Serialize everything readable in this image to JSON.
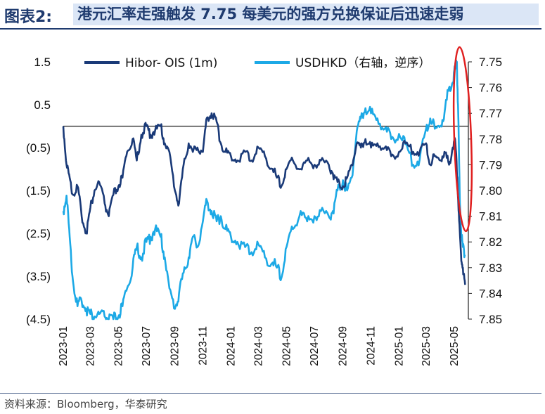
{
  "header": {
    "label": "图表2:",
    "title": "港元汇率走强触发 7.75 每美元的强方兑换保证后迅速走弱"
  },
  "footer": {
    "source": "资料来源：Bloomberg，华泰研究"
  },
  "colors": {
    "hibor": "#1a3a78",
    "usdhkd": "#1ca9e6",
    "highlight": "#e02020",
    "title_bg": "#dbe6f6"
  },
  "chart_data": {
    "type": "line",
    "x_range": [
      "2023-01-01",
      "2025-06-01"
    ],
    "x_ticks": [
      "2023-01",
      "2023-03",
      "2023-05",
      "2023-07",
      "2023-09",
      "2023-11",
      "2024-01",
      "2024-03",
      "2024-05",
      "2024-07",
      "2024-09",
      "2024-11",
      "2025-01",
      "2025-03",
      "2025-05"
    ],
    "left_axis": {
      "min": -4.5,
      "max": 1.5,
      "ticks": [
        "1.5",
        "0.5",
        "(0.5)",
        "(1.5)",
        "(2.5)",
        "(3.5)",
        "(4.5)"
      ],
      "tick_values": [
        1.5,
        0.5,
        -0.5,
        -1.5,
        -2.5,
        -3.5,
        -4.5
      ]
    },
    "right_axis": {
      "min": 7.75,
      "max": 7.85,
      "inverted": true,
      "ticks": [
        "7.75",
        "7.76",
        "7.77",
        "7.78",
        "7.79",
        "7.80",
        "7.81",
        "7.82",
        "7.83",
        "7.84",
        "7.85"
      ],
      "tick_values": [
        7.75,
        7.76,
        7.77,
        7.78,
        7.79,
        7.8,
        7.81,
        7.82,
        7.83,
        7.84,
        7.85
      ]
    },
    "reference_line": 0,
    "annotation": "red ellipse highlighting May 2025",
    "series": [
      {
        "name": "Hibor- OIS (1m)",
        "axis": "left",
        "points": [
          [
            "2023-01-01",
            0.0
          ],
          [
            "2023-01-08",
            -0.9
          ],
          [
            "2023-01-15",
            -1.2
          ],
          [
            "2023-01-22",
            -1.6
          ],
          [
            "2023-02-01",
            -1.4
          ],
          [
            "2023-02-10",
            -2.1
          ],
          [
            "2023-02-20",
            -2.5
          ],
          [
            "2023-03-01",
            -1.9
          ],
          [
            "2023-03-10",
            -1.5
          ],
          [
            "2023-03-20",
            -1.3
          ],
          [
            "2023-04-01",
            -1.8
          ],
          [
            "2023-04-10",
            -2.1
          ],
          [
            "2023-04-20",
            -1.6
          ],
          [
            "2023-05-01",
            -1.4
          ],
          [
            "2023-05-10",
            -1.2
          ],
          [
            "2023-05-20",
            -0.6
          ],
          [
            "2023-06-01",
            -0.3
          ],
          [
            "2023-06-10",
            -0.8
          ],
          [
            "2023-06-20",
            -0.2
          ],
          [
            "2023-07-01",
            0.0
          ],
          [
            "2023-07-10",
            -0.2
          ],
          [
            "2023-07-20",
            -0.1
          ],
          [
            "2023-08-01",
            0.0
          ],
          [
            "2023-08-10",
            -0.4
          ],
          [
            "2023-08-20",
            -0.6
          ],
          [
            "2023-09-01",
            -1.5
          ],
          [
            "2023-09-10",
            -1.8
          ],
          [
            "2023-09-20",
            -0.9
          ],
          [
            "2023-10-01",
            -0.4
          ],
          [
            "2023-10-10",
            -0.6
          ],
          [
            "2023-10-20",
            -0.5
          ],
          [
            "2023-11-01",
            -0.6
          ],
          [
            "2023-11-10",
            0.2
          ],
          [
            "2023-11-20",
            0.3
          ],
          [
            "2023-12-01",
            0.1
          ],
          [
            "2023-12-10",
            -0.4
          ],
          [
            "2023-12-20",
            -0.6
          ],
          [
            "2024-01-01",
            -0.7
          ],
          [
            "2024-01-15",
            -0.8
          ],
          [
            "2024-02-01",
            -0.6
          ],
          [
            "2024-02-15",
            -0.8
          ],
          [
            "2024-03-01",
            -0.5
          ],
          [
            "2024-03-15",
            -0.7
          ],
          [
            "2024-04-01",
            -1.0
          ],
          [
            "2024-04-10",
            -1.2
          ],
          [
            "2024-04-20",
            -1.4
          ],
          [
            "2024-05-01",
            -1.0
          ],
          [
            "2024-05-15",
            -0.8
          ],
          [
            "2024-06-01",
            -1.0
          ],
          [
            "2024-06-15",
            -0.8
          ],
          [
            "2024-07-01",
            -0.9
          ],
          [
            "2024-07-15",
            -0.8
          ],
          [
            "2024-08-01",
            -0.9
          ],
          [
            "2024-08-10",
            -1.1
          ],
          [
            "2024-08-20",
            -1.3
          ],
          [
            "2024-09-01",
            -1.4
          ],
          [
            "2024-09-10",
            -1.2
          ],
          [
            "2024-09-20",
            -0.9
          ],
          [
            "2024-10-01",
            -0.4
          ],
          [
            "2024-10-10",
            -0.5
          ],
          [
            "2024-10-20",
            -0.3
          ],
          [
            "2024-11-01",
            -0.5
          ],
          [
            "2024-11-15",
            -0.4
          ],
          [
            "2024-12-01",
            -0.5
          ],
          [
            "2024-12-15",
            -0.7
          ],
          [
            "2025-01-01",
            -0.6
          ],
          [
            "2025-01-15",
            -0.4
          ],
          [
            "2025-02-01",
            -0.6
          ],
          [
            "2025-02-15",
            -0.6
          ],
          [
            "2025-03-01",
            -0.4
          ],
          [
            "2025-03-10",
            -0.9
          ],
          [
            "2025-03-20",
            -0.7
          ],
          [
            "2025-04-01",
            -0.8
          ],
          [
            "2025-04-10",
            -0.6
          ],
          [
            "2025-04-20",
            -0.9
          ],
          [
            "2025-04-28",
            -0.5
          ],
          [
            "2025-05-03",
            -0.3
          ],
          [
            "2025-05-08",
            -1.2
          ],
          [
            "2025-05-12",
            -2.2
          ],
          [
            "2025-05-16",
            -3.0
          ],
          [
            "2025-05-20",
            -3.3
          ],
          [
            "2025-05-25",
            -3.7
          ]
        ]
      },
      {
        "name": "USDHKD（右轴，逆序）",
        "axis": "right",
        "points": [
          [
            "2023-01-01",
            7.808
          ],
          [
            "2023-01-08",
            7.802
          ],
          [
            "2023-01-15",
            7.818
          ],
          [
            "2023-01-22",
            7.835
          ],
          [
            "2023-02-01",
            7.845
          ],
          [
            "2023-02-10",
            7.843
          ],
          [
            "2023-02-20",
            7.846
          ],
          [
            "2023-03-01",
            7.848
          ],
          [
            "2023-03-10",
            7.849
          ],
          [
            "2023-03-20",
            7.848
          ],
          [
            "2023-04-01",
            7.849
          ],
          [
            "2023-04-10",
            7.85
          ],
          [
            "2023-04-20",
            7.85
          ],
          [
            "2023-05-01",
            7.849
          ],
          [
            "2023-05-10",
            7.845
          ],
          [
            "2023-05-20",
            7.838
          ],
          [
            "2023-06-01",
            7.83
          ],
          [
            "2023-06-10",
            7.822
          ],
          [
            "2023-06-20",
            7.826
          ],
          [
            "2023-07-01",
            7.82
          ],
          [
            "2023-07-10",
            7.818
          ],
          [
            "2023-07-20",
            7.815
          ],
          [
            "2023-08-01",
            7.818
          ],
          [
            "2023-08-10",
            7.826
          ],
          [
            "2023-08-20",
            7.838
          ],
          [
            "2023-09-01",
            7.846
          ],
          [
            "2023-09-10",
            7.84
          ],
          [
            "2023-09-20",
            7.832
          ],
          [
            "2023-10-01",
            7.826
          ],
          [
            "2023-10-10",
            7.818
          ],
          [
            "2023-10-20",
            7.822
          ],
          [
            "2023-11-01",
            7.812
          ],
          [
            "2023-11-10",
            7.804
          ],
          [
            "2023-11-20",
            7.808
          ],
          [
            "2023-12-01",
            7.812
          ],
          [
            "2023-12-10",
            7.81
          ],
          [
            "2023-12-20",
            7.815
          ],
          [
            "2024-01-01",
            7.818
          ],
          [
            "2024-01-15",
            7.82
          ],
          [
            "2024-02-01",
            7.822
          ],
          [
            "2024-02-15",
            7.824
          ],
          [
            "2024-03-01",
            7.821
          ],
          [
            "2024-03-15",
            7.826
          ],
          [
            "2024-04-01",
            7.828
          ],
          [
            "2024-04-10",
            7.83
          ],
          [
            "2024-04-20",
            7.834
          ],
          [
            "2024-05-01",
            7.822
          ],
          [
            "2024-05-15",
            7.815
          ],
          [
            "2024-06-01",
            7.808
          ],
          [
            "2024-06-15",
            7.812
          ],
          [
            "2024-07-01",
            7.81
          ],
          [
            "2024-07-15",
            7.808
          ],
          [
            "2024-08-01",
            7.81
          ],
          [
            "2024-08-10",
            7.808
          ],
          [
            "2024-08-20",
            7.8
          ],
          [
            "2024-09-01",
            7.796
          ],
          [
            "2024-09-10",
            7.8
          ],
          [
            "2024-09-20",
            7.795
          ],
          [
            "2024-10-01",
            7.777
          ],
          [
            "2024-10-10",
            7.772
          ],
          [
            "2024-10-20",
            7.768
          ],
          [
            "2024-11-01",
            7.77
          ],
          [
            "2024-11-15",
            7.772
          ],
          [
            "2024-12-01",
            7.776
          ],
          [
            "2024-12-15",
            7.78
          ],
          [
            "2025-01-01",
            7.778
          ],
          [
            "2025-01-15",
            7.782
          ],
          [
            "2025-02-01",
            7.79
          ],
          [
            "2025-02-15",
            7.788
          ],
          [
            "2025-03-01",
            7.776
          ],
          [
            "2025-03-10",
            7.772
          ],
          [
            "2025-03-20",
            7.776
          ],
          [
            "2025-04-01",
            7.775
          ],
          [
            "2025-04-10",
            7.77
          ],
          [
            "2025-04-20",
            7.76
          ],
          [
            "2025-04-28",
            7.758
          ],
          [
            "2025-05-03",
            7.752
          ],
          [
            "2025-05-07",
            7.75
          ],
          [
            "2025-05-10",
            7.77
          ],
          [
            "2025-05-13",
            7.8
          ],
          [
            "2025-05-16",
            7.815
          ],
          [
            "2025-05-20",
            7.822
          ],
          [
            "2025-05-25",
            7.825
          ]
        ]
      }
    ]
  }
}
